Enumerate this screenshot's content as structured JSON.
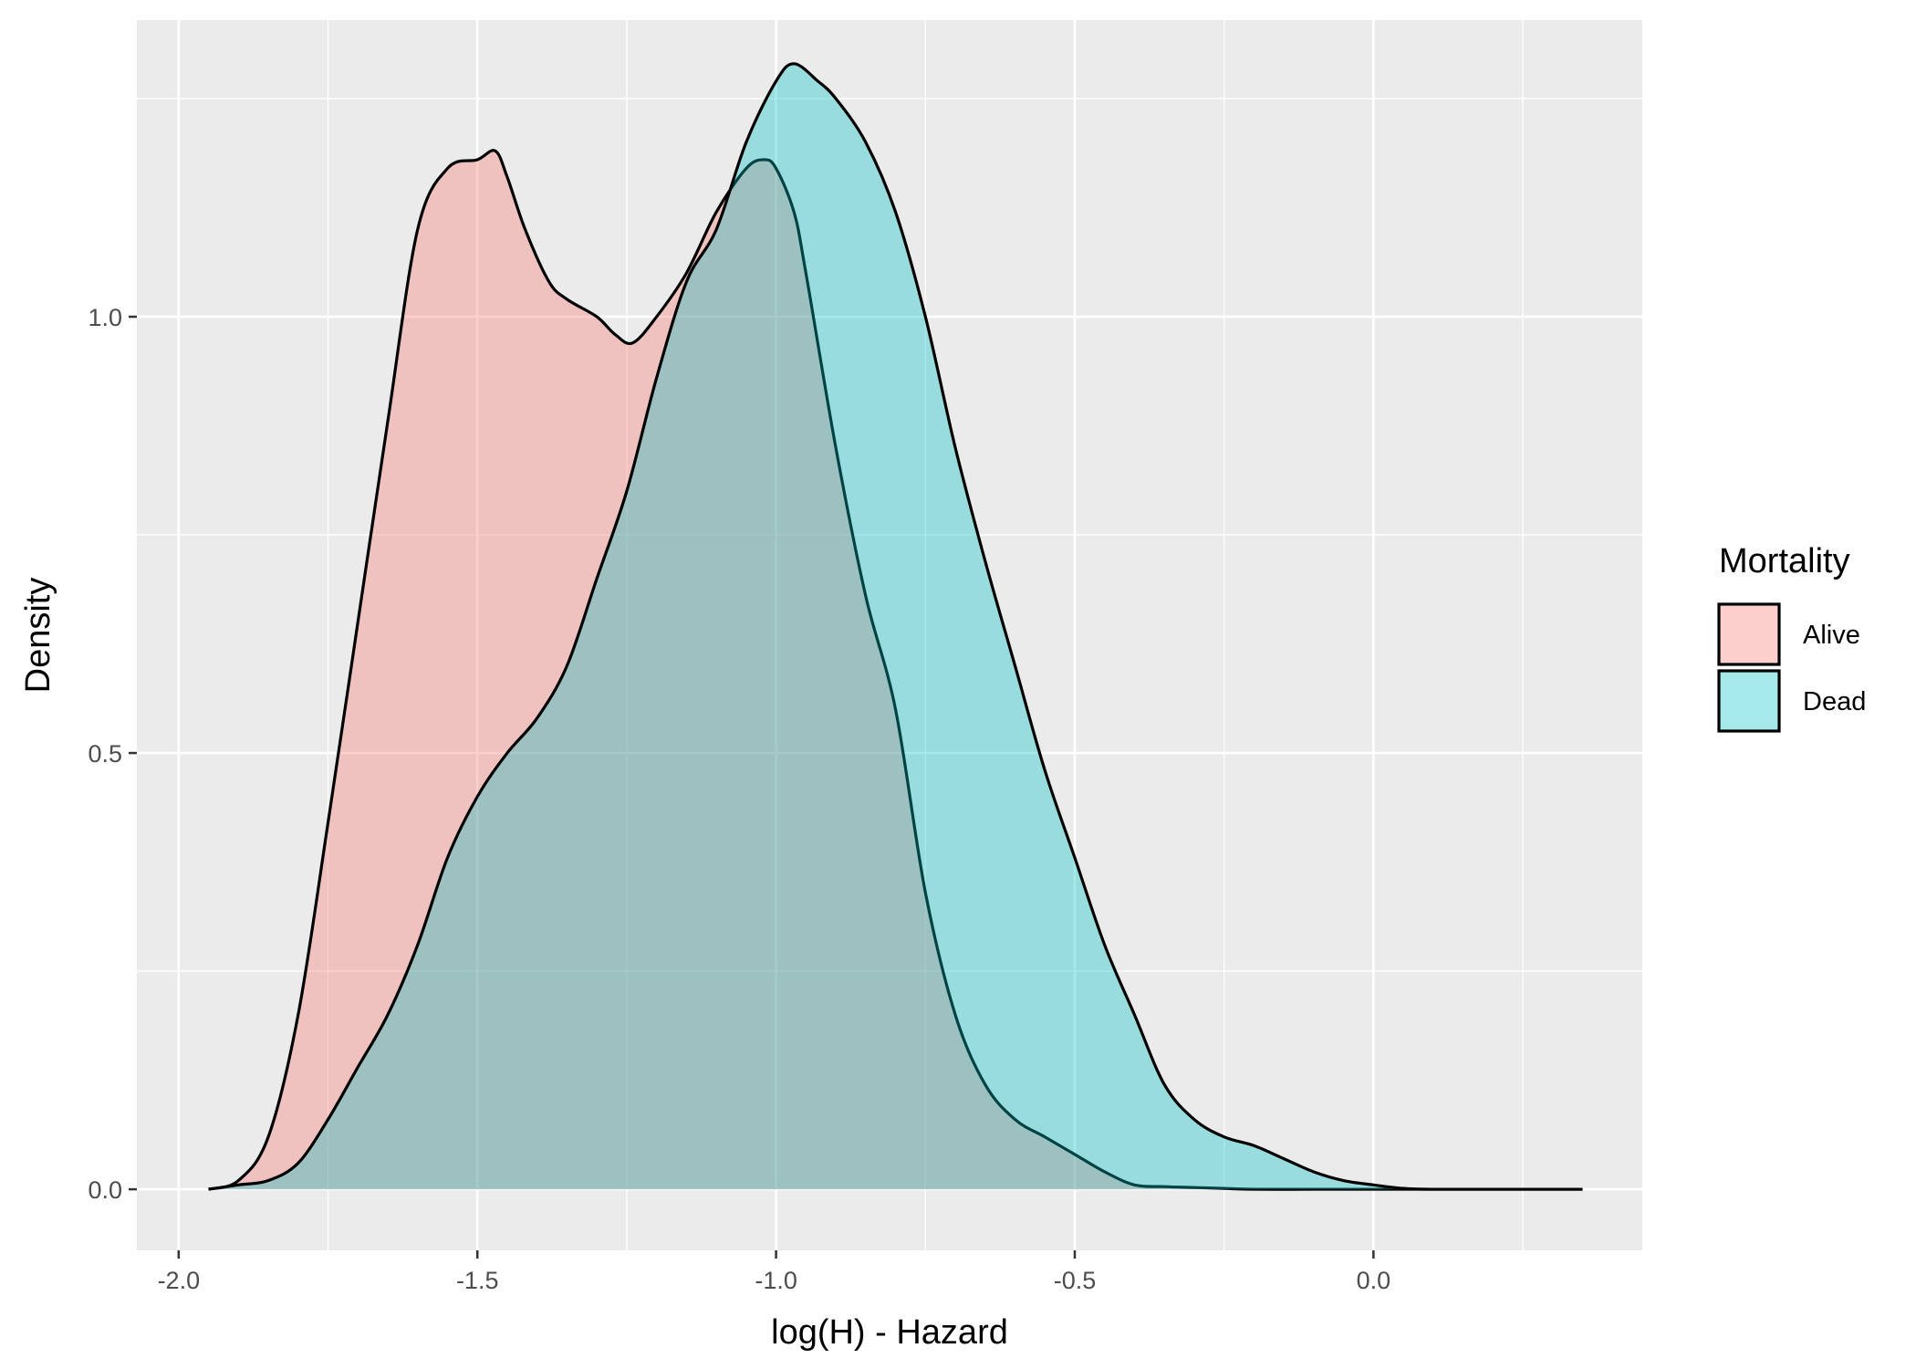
{
  "chart_data": {
    "type": "area",
    "title": "",
    "xlabel": "log(H) - Hazard",
    "ylabel": "Density",
    "xlim": [
      -2.07,
      0.45
    ],
    "ylim": [
      -0.07,
      1.34
    ],
    "x_ticks": [
      -2.0,
      -1.5,
      -1.0,
      -0.5,
      0.0
    ],
    "x_tick_labels": [
      "-2.0",
      "-1.5",
      "-1.0",
      "-0.5",
      "0.0"
    ],
    "y_ticks": [
      0.0,
      0.5,
      1.0
    ],
    "y_tick_labels": [
      "0.0",
      "0.5",
      "1.0"
    ],
    "grid": true,
    "legend": {
      "title": "Mortality",
      "position": "right"
    },
    "colors": {
      "panel_background": "#ebebeb",
      "grid": "#ffffff",
      "Alive": "#F8766D",
      "Dead": "#00BFC4",
      "outline": "#000000"
    },
    "fill_opacity": 0.35,
    "series": [
      {
        "name": "Alive",
        "x": [
          -1.95,
          -1.9,
          -1.85,
          -1.8,
          -1.75,
          -1.7,
          -1.65,
          -1.6,
          -1.55,
          -1.5,
          -1.47,
          -1.45,
          -1.42,
          -1.38,
          -1.35,
          -1.3,
          -1.27,
          -1.24,
          -1.2,
          -1.15,
          -1.1,
          -1.05,
          -1.02,
          -1.0,
          -0.97,
          -0.95,
          -0.9,
          -0.85,
          -0.8,
          -0.75,
          -0.7,
          -0.65,
          -0.6,
          -0.55,
          -0.5,
          -0.45,
          -0.4,
          -0.35,
          -0.3,
          -0.25,
          -0.2,
          -0.1,
          0.0,
          0.1,
          0.2,
          0.35
        ],
        "y": [
          0.0,
          0.01,
          0.06,
          0.2,
          0.42,
          0.65,
          0.88,
          1.1,
          1.17,
          1.18,
          1.19,
          1.16,
          1.1,
          1.04,
          1.02,
          1.0,
          0.98,
          0.97,
          1.0,
          1.05,
          1.12,
          1.17,
          1.18,
          1.17,
          1.12,
          1.05,
          0.85,
          0.68,
          0.55,
          0.34,
          0.2,
          0.12,
          0.08,
          0.06,
          0.04,
          0.02,
          0.005,
          0.003,
          0.002,
          0.001,
          0.0,
          0.0,
          0.0,
          0.0,
          0.0,
          0.0
        ]
      },
      {
        "name": "Dead",
        "x": [
          -1.95,
          -1.9,
          -1.85,
          -1.8,
          -1.75,
          -1.7,
          -1.65,
          -1.6,
          -1.55,
          -1.5,
          -1.45,
          -1.4,
          -1.35,
          -1.3,
          -1.25,
          -1.2,
          -1.15,
          -1.1,
          -1.05,
          -1.0,
          -0.97,
          -0.93,
          -0.9,
          -0.85,
          -0.8,
          -0.75,
          -0.7,
          -0.65,
          -0.6,
          -0.55,
          -0.5,
          -0.45,
          -0.4,
          -0.35,
          -0.3,
          -0.25,
          -0.2,
          -0.15,
          -0.1,
          -0.05,
          0.0,
          0.05,
          0.1,
          0.2,
          0.35
        ],
        "y": [
          0.0,
          0.005,
          0.01,
          0.03,
          0.08,
          0.14,
          0.2,
          0.28,
          0.38,
          0.45,
          0.5,
          0.54,
          0.6,
          0.7,
          0.8,
          0.93,
          1.04,
          1.1,
          1.2,
          1.27,
          1.29,
          1.27,
          1.25,
          1.2,
          1.12,
          1.0,
          0.85,
          0.72,
          0.6,
          0.48,
          0.38,
          0.28,
          0.2,
          0.12,
          0.08,
          0.06,
          0.05,
          0.035,
          0.02,
          0.01,
          0.005,
          0.001,
          0.0,
          0.0,
          0.0
        ]
      }
    ]
  }
}
